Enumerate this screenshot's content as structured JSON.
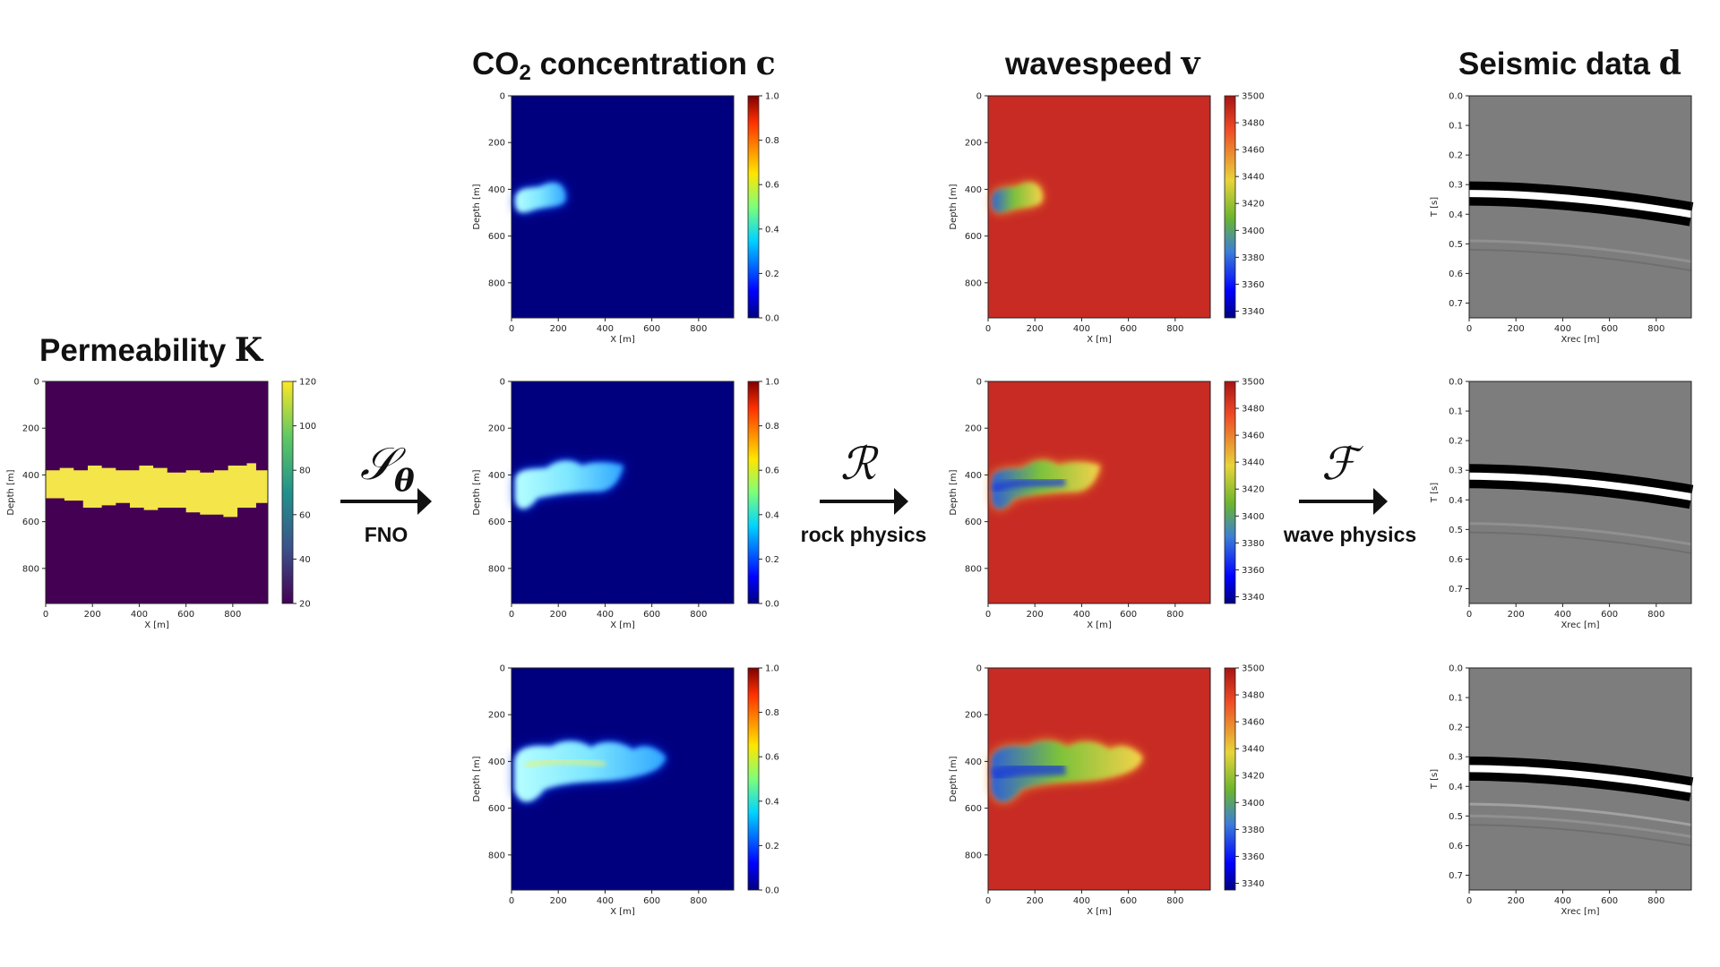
{
  "titles": {
    "permeability": {
      "text": "Permeability ",
      "symbol": "K"
    },
    "co2": {
      "pre": "CO",
      "sub": "2",
      "post": " concentration ",
      "symbol": "c"
    },
    "wavespeed": {
      "text": "wavespeed ",
      "symbol": "v"
    },
    "seismic": {
      "text": "Seismic data ",
      "symbol": "d"
    }
  },
  "operators": [
    {
      "symbol": "𝒮",
      "subscript": "θ",
      "label": "FNO"
    },
    {
      "symbol": "ℛ",
      "subscript": "",
      "label": "rock physics"
    },
    {
      "symbol": "ℱ",
      "subscript": "",
      "label": "wave physics"
    }
  ],
  "axes": {
    "x_label": "X [m]",
    "depth_label": "Depth [m]",
    "time_label": "T [s]",
    "xrec_label": "Xrec [m]",
    "x_ticks": [
      "0",
      "200",
      "400",
      "600",
      "800"
    ],
    "x_tick_values": [
      0,
      200,
      400,
      600,
      800
    ],
    "x_range": [
      0,
      950
    ],
    "depth_ticks": [
      "0",
      "200",
      "400",
      "600",
      "800"
    ],
    "depth_tick_values": [
      0,
      200,
      400,
      600,
      800
    ],
    "depth_range": [
      0,
      950
    ],
    "time_ticks": [
      "0.0",
      "0.1",
      "0.2",
      "0.3",
      "0.4",
      "0.5",
      "0.6",
      "0.7"
    ],
    "time_tick_values": [
      0.0,
      0.1,
      0.2,
      0.3,
      0.4,
      0.5,
      0.6,
      0.7
    ],
    "time_range": [
      0,
      0.75
    ]
  },
  "colorbars": {
    "permeability": {
      "ticks": [
        "120",
        "100",
        "80",
        "60",
        "40",
        "20"
      ],
      "min": 20,
      "max": 120
    },
    "co2": {
      "ticks": [
        "1.0",
        "0.8",
        "0.6",
        "0.4",
        "0.2",
        "0.0"
      ],
      "min": 0,
      "max": 1
    },
    "wavespeed": {
      "ticks": [
        "3500",
        "3480",
        "3460",
        "3440",
        "3420",
        "3400",
        "3380",
        "3360",
        "3340"
      ],
      "min": 3335,
      "max": 3500
    }
  },
  "colors": {
    "perm_background": "#440154",
    "perm_channel": "#f3e54a",
    "co2_background": "#00007f",
    "velocity_background": "#c72b24",
    "seismic_background": "#7d7d7d"
  },
  "plume_extent_m": [
    240,
    480,
    660
  ],
  "seismic_event_time_s": [
    0.33,
    0.32,
    0.34
  ]
}
